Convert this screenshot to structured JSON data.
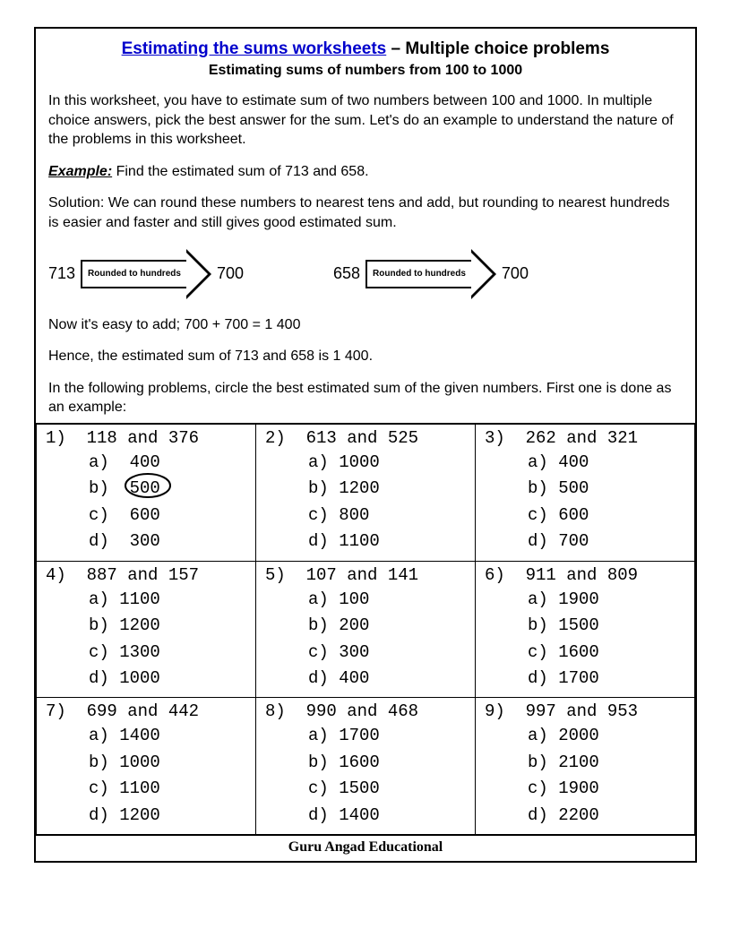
{
  "header": {
    "title_link": "Estimating the sums worksheets",
    "title_suffix": " – Multiple choice problems",
    "subtitle": "Estimating sums of numbers from 100 to 1000"
  },
  "intro": "In this worksheet, you have to estimate sum of two numbers between 100 and 1000. In multiple choice answers, pick the best answer for the sum. Let's do an example to understand the nature of the problems in this worksheet.",
  "example": {
    "label": "Example:",
    "prompt": " Find the estimated sum of 713 and 658.",
    "solution": "Solution: We can round these numbers to nearest tens and add, but rounding to nearest hundreds is easier and faster and still gives good estimated sum.",
    "arrow_label": "Rounded to hundreds",
    "left_in": "713",
    "left_out": "700",
    "right_in": "658",
    "right_out": "700",
    "now_line": "Now it's easy to add; 700 + 700 = 1 400",
    "hence_line": "Hence, the estimated sum of 713 and 658 is 1 400.",
    "instruction": "In the following problems, circle the best estimated sum of the given numbers. First one is done as an example:"
  },
  "problems": [
    {
      "n": "1)",
      "q": "118 and 376",
      "opts": [
        "a)  400",
        "b)  500",
        "c)  600",
        "d)  300"
      ],
      "circle": 1,
      "pad": true
    },
    {
      "n": "2)",
      "q": "613 and 525",
      "opts": [
        "a) 1000",
        "b) 1200",
        "c) 800",
        "d) 1100"
      ]
    },
    {
      "n": "3)",
      "q": "262 and 321",
      "opts": [
        "a) 400",
        "b) 500",
        "c) 600",
        "d) 700"
      ]
    },
    {
      "n": "4)",
      "q": "887 and 157",
      "opts": [
        "a) 1100",
        "b) 1200",
        "c) 1300",
        "d) 1000"
      ]
    },
    {
      "n": "5)",
      "q": "107 and 141",
      "opts": [
        "a) 100",
        "b) 200",
        "c) 300",
        "d) 400"
      ]
    },
    {
      "n": "6)",
      "q": "911 and 809",
      "opts": [
        "a) 1900",
        "b) 1500",
        "c) 1600",
        "d) 1700"
      ]
    },
    {
      "n": "7)",
      "q": "699 and 442",
      "opts": [
        "a) 1400",
        "b) 1000",
        "c) 1100",
        "d) 1200"
      ]
    },
    {
      "n": "8)",
      "q": "990 and 468",
      "opts": [
        "a) 1700",
        "b) 1600",
        "c) 1500",
        "d) 1400"
      ]
    },
    {
      "n": "9)",
      "q": "997 and 953",
      "opts": [
        "a) 2000",
        "b) 2100",
        "c) 1900",
        "d) 2200"
      ]
    }
  ],
  "footer": "Guru Angad Educational",
  "colors": {
    "link": "#0000cc",
    "border": "#000000",
    "text": "#000000",
    "background": "#ffffff"
  }
}
